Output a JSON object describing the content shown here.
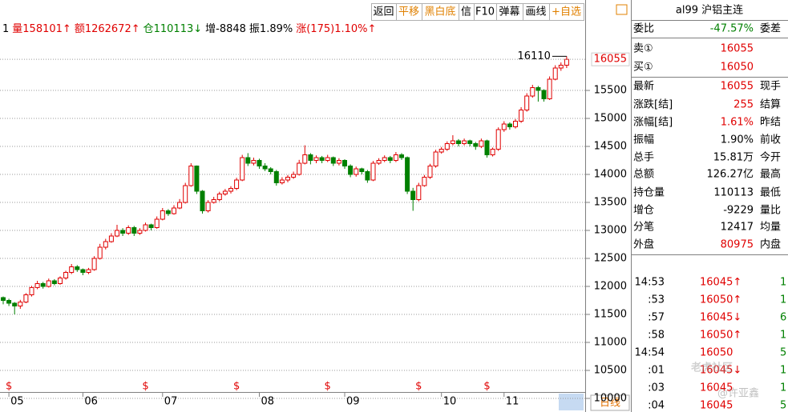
{
  "toolbar": [
    "返回",
    "平移",
    "黑白底",
    "信",
    "F10",
    "弹幕",
    "画线",
    "+自选"
  ],
  "info_bar": [
    {
      "text": "1",
      "color": "#000"
    },
    {
      "text": "量158101↑",
      "color": "#e00000"
    },
    {
      "text": "额1262672↑",
      "color": "#e00000"
    },
    {
      "text": "仓110113↓",
      "color": "#008000"
    },
    {
      "text": "增-8848",
      "color": "#000"
    },
    {
      "text": "振1.89%",
      "color": "#000"
    },
    {
      "text": "涨(175)1.10%↑",
      "color": "#e00000"
    }
  ],
  "chart_data": {
    "type": "candlestick",
    "up_color": "#e00000",
    "down_color": "#008000",
    "categories": [
      null,
      "05",
      null,
      null,
      null,
      null,
      null,
      null,
      null,
      null,
      null,
      null,
      null,
      null,
      "06",
      null,
      null,
      null,
      null,
      null,
      null,
      null,
      null,
      null,
      null,
      null,
      null,
      null,
      "07",
      null,
      null,
      null,
      null,
      null,
      null,
      null,
      null,
      null,
      null,
      null,
      null,
      null,
      null,
      null,
      null,
      "08",
      null,
      null,
      null,
      null,
      null,
      null,
      null,
      null,
      null,
      null,
      null,
      null,
      null,
      null,
      "09",
      null,
      null,
      null,
      null,
      null,
      null,
      null,
      null,
      null,
      null,
      null,
      null,
      null,
      null,
      null,
      null,
      "10",
      null,
      null,
      null,
      null,
      null,
      null,
      null,
      null,
      null,
      null,
      "11",
      null,
      null,
      null,
      null,
      null,
      null,
      null,
      null,
      null,
      null,
      null
    ],
    "ohlc": [
      [
        11800,
        11820,
        11680,
        11750
      ],
      [
        11750,
        11780,
        11650,
        11700
      ],
      [
        11700,
        11720,
        11500,
        11650
      ],
      [
        11650,
        11760,
        11600,
        11720
      ],
      [
        11720,
        11880,
        11700,
        11850
      ],
      [
        11850,
        12010,
        11820,
        11980
      ],
      [
        11980,
        12100,
        11950,
        12050
      ],
      [
        12050,
        12080,
        11960,
        12000
      ],
      [
        12000,
        12140,
        11980,
        12100
      ],
      [
        12100,
        12130,
        12020,
        12050
      ],
      [
        12050,
        12180,
        12030,
        12150
      ],
      [
        12150,
        12280,
        12120,
        12250
      ],
      [
        12250,
        12400,
        12220,
        12350
      ],
      [
        12350,
        12380,
        12260,
        12300
      ],
      [
        12300,
        12320,
        12200,
        12250
      ],
      [
        12250,
        12330,
        12220,
        12300
      ],
      [
        12300,
        12540,
        12280,
        12500
      ],
      [
        12500,
        12760,
        12480,
        12700
      ],
      [
        12700,
        12850,
        12660,
        12800
      ],
      [
        12800,
        12950,
        12780,
        12900
      ],
      [
        12900,
        13100,
        12880,
        13000
      ],
      [
        13000,
        13040,
        12900,
        12950
      ],
      [
        12950,
        13090,
        12920,
        13050
      ],
      [
        13050,
        13080,
        12900,
        12950
      ],
      [
        12950,
        13040,
        12920,
        13000
      ],
      [
        13000,
        13140,
        12980,
        13100
      ],
      [
        13100,
        13120,
        13000,
        13050
      ],
      [
        13050,
        13250,
        13030,
        13200
      ],
      [
        13200,
        13400,
        13180,
        13350
      ],
      [
        13350,
        13380,
        13260,
        13300
      ],
      [
        13300,
        13450,
        13280,
        13400
      ],
      [
        13400,
        13560,
        13380,
        13500
      ],
      [
        13500,
        13850,
        13480,
        13800
      ],
      [
        13800,
        14200,
        13780,
        14150
      ],
      [
        14150,
        14160,
        13650,
        13700
      ],
      [
        13700,
        13720,
        13300,
        13350
      ],
      [
        13350,
        13540,
        13320,
        13500
      ],
      [
        13500,
        13600,
        13480,
        13550
      ],
      [
        13550,
        13690,
        13520,
        13650
      ],
      [
        13650,
        13740,
        13620,
        13700
      ],
      [
        13700,
        13790,
        13660,
        13750
      ],
      [
        13750,
        13940,
        13720,
        13900
      ],
      [
        13900,
        14350,
        13880,
        14300
      ],
      [
        14300,
        14380,
        14150,
        14200
      ],
      [
        14200,
        14300,
        14160,
        14250
      ],
      [
        14250,
        14280,
        14100,
        14150
      ],
      [
        14150,
        14200,
        14060,
        14100
      ],
      [
        14100,
        14130,
        14000,
        14050
      ],
      [
        14050,
        14080,
        13800,
        13850
      ],
      [
        13850,
        13950,
        13820,
        13900
      ],
      [
        13900,
        13990,
        13860,
        13950
      ],
      [
        13950,
        14050,
        13920,
        14000
      ],
      [
        14000,
        14260,
        13980,
        14200
      ],
      [
        14200,
        14520,
        14180,
        14350
      ],
      [
        14350,
        14380,
        14180,
        14250
      ],
      [
        14250,
        14340,
        14200,
        14300
      ],
      [
        14300,
        14330,
        14200,
        14250
      ],
      [
        14250,
        14350,
        14220,
        14300
      ],
      [
        14300,
        14320,
        14150,
        14200
      ],
      [
        14200,
        14290,
        14160,
        14250
      ],
      [
        14250,
        14270,
        14100,
        14150
      ],
      [
        14150,
        14180,
        13950,
        14000
      ],
      [
        14000,
        14140,
        13960,
        14100
      ],
      [
        14100,
        14120,
        14000,
        14050
      ],
      [
        14050,
        14080,
        13850,
        13900
      ],
      [
        13900,
        14240,
        13880,
        14200
      ],
      [
        14200,
        14290,
        14170,
        14250
      ],
      [
        14250,
        14340,
        14220,
        14300
      ],
      [
        14300,
        14330,
        14200,
        14250
      ],
      [
        14250,
        14400,
        14220,
        14350
      ],
      [
        14350,
        14380,
        14260,
        14300
      ],
      [
        14300,
        14320,
        13650,
        13700
      ],
      [
        13700,
        13760,
        13350,
        13550
      ],
      [
        13550,
        13850,
        13520,
        13800
      ],
      [
        13800,
        13990,
        13780,
        13950
      ],
      [
        13950,
        14190,
        13920,
        14150
      ],
      [
        14150,
        14440,
        14120,
        14400
      ],
      [
        14400,
        14490,
        14370,
        14450
      ],
      [
        14450,
        14590,
        14420,
        14550
      ],
      [
        14550,
        14700,
        14520,
        14600
      ],
      [
        14600,
        14630,
        14500,
        14550
      ],
      [
        14550,
        14640,
        14520,
        14600
      ],
      [
        14600,
        14620,
        14500,
        14550
      ],
      [
        14550,
        14580,
        14440,
        14500
      ],
      [
        14500,
        14640,
        14470,
        14600
      ],
      [
        14600,
        14620,
        14300,
        14350
      ],
      [
        14350,
        14480,
        14320,
        14450
      ],
      [
        14450,
        14840,
        14420,
        14800
      ],
      [
        14800,
        14950,
        14760,
        14900
      ],
      [
        14900,
        14930,
        14800,
        14850
      ],
      [
        14850,
        14990,
        14820,
        14950
      ],
      [
        14950,
        15200,
        14920,
        15150
      ],
      [
        15150,
        15450,
        15120,
        15400
      ],
      [
        15400,
        15600,
        15370,
        15550
      ],
      [
        15550,
        15580,
        15300,
        15500
      ],
      [
        15500,
        15520,
        15300,
        15350
      ],
      [
        15350,
        15750,
        15330,
        15700
      ],
      [
        15700,
        15950,
        15680,
        15900
      ],
      [
        15900,
        16000,
        15850,
        15950
      ],
      [
        15950,
        16110,
        15900,
        16055
      ]
    ],
    "ylim": [
      10000,
      16729
    ],
    "yticks": [
      10000,
      10500,
      11000,
      11500,
      12000,
      12500,
      13000,
      13500,
      14000,
      14500,
      15000,
      15500
    ],
    "grid": true,
    "event_marker": "$",
    "period": "日线"
  },
  "panel": {
    "title": "al99 沪铝主连",
    "rows": [
      {
        "label": "委比",
        "value": "-47.57%",
        "color": "#008000",
        "label2": "委差"
      },
      {
        "label": "卖①",
        "value": "16055",
        "color": "#e00000"
      },
      {
        "label": "买①",
        "value": "16050",
        "color": "#e00000"
      },
      {
        "label": "最新",
        "value": "16055",
        "color": "#e00000",
        "label2": "现手"
      },
      {
        "label": "涨跌[结]",
        "value": "255",
        "color": "#e00000",
        "label2": "结算"
      },
      {
        "label": "涨幅[结]",
        "value": "1.61%",
        "color": "#e00000",
        "label2": "昨结"
      },
      {
        "label": "振幅",
        "value": "1.90%",
        "color": "#000",
        "label2": "前收"
      },
      {
        "label": "总手",
        "value": "15.81万",
        "color": "#000",
        "label2": "今开"
      },
      {
        "label": "总额",
        "value": "126.27亿",
        "color": "#000",
        "label2": "最高"
      },
      {
        "label": "持仓量",
        "value": "110113",
        "color": "#000",
        "label2": "最低"
      },
      {
        "label": "增仓",
        "value": "-9229",
        "color": "#000",
        "label2": "量比"
      },
      {
        "label": "分笔",
        "value": "12417",
        "color": "#000",
        "label2": "均量"
      },
      {
        "label": "外盘",
        "value": "80975",
        "color": "#e00000",
        "label2": "内盘"
      }
    ],
    "trades": [
      {
        "time": "14:53",
        "price": "16045↑",
        "qty": "1"
      },
      {
        "time": ":53",
        "price": "16050↑",
        "qty": "1"
      },
      {
        "time": ":57",
        "price": "16045↓",
        "qty": "6"
      },
      {
        "time": ":58",
        "price": "16050↑",
        "qty": "1"
      },
      {
        "time": "14:54",
        "price": "16050",
        "qty": "5"
      },
      {
        "time": ":01",
        "price": "16045↓",
        "qty": "1"
      },
      {
        "time": ":03",
        "price": "16045",
        "qty": "1"
      },
      {
        "time": ":04",
        "price": "16045",
        "qty": "5"
      }
    ],
    "watermark": "老虎社区",
    "author": "@许亚鑫"
  }
}
